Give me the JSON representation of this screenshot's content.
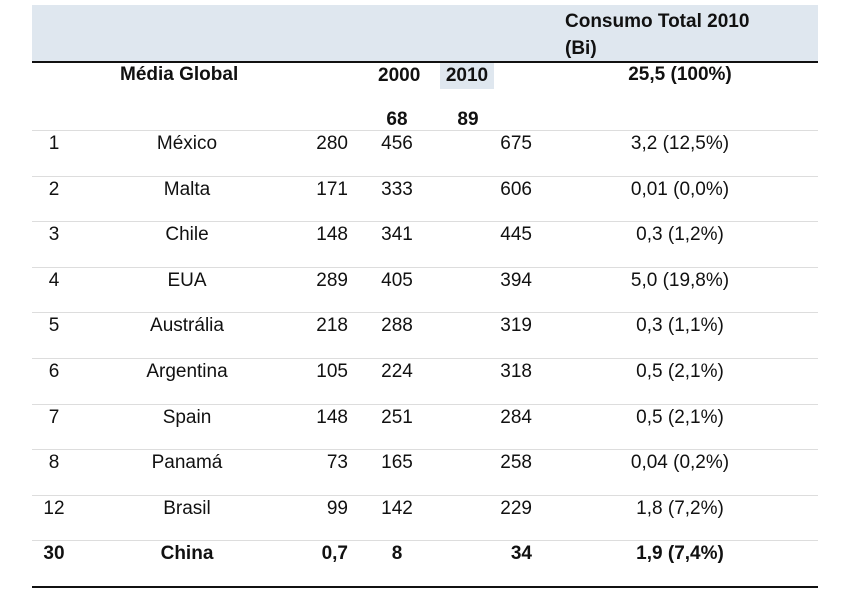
{
  "header": {
    "consumo_title": "Consumo Total 2010 (Bi)"
  },
  "global": {
    "label": "Média Global",
    "year_2000": "2000",
    "year_2010": "2010",
    "total": "25,5 (100%)",
    "val_2000": "68",
    "val_2010": "89"
  },
  "table": {
    "rows": [
      [
        "1",
        "México",
        "280",
        "456",
        "675",
        "3,2 (12,5%)"
      ],
      [
        "2",
        "Malta",
        "171",
        "333",
        "606",
        "0,01 (0,0%)"
      ],
      [
        "3",
        "Chile",
        "148",
        "341",
        "445",
        "0,3 (1,2%)"
      ],
      [
        "4",
        "EUA",
        "289",
        "405",
        "394",
        "5,0 (19,8%)"
      ],
      [
        "5",
        "Austrália",
        "218",
        "288",
        "319",
        "0,3 (1,1%)"
      ],
      [
        "6",
        "Argentina",
        "105",
        "224",
        "318",
        "0,5 (2,1%)"
      ],
      [
        "7",
        "Spain",
        "148",
        "251",
        "284",
        "0,5 (2,1%)"
      ],
      [
        "8",
        "Panamá",
        "73",
        "165",
        "258",
        "0,04 (0,2%)"
      ],
      [
        "12",
        "Brasil",
        "99",
        "142",
        "229",
        "1,8 (7,2%)"
      ],
      [
        "30",
        "China",
        "0,7",
        "8",
        "34",
        "1,9 (7,4%)"
      ]
    ]
  }
}
